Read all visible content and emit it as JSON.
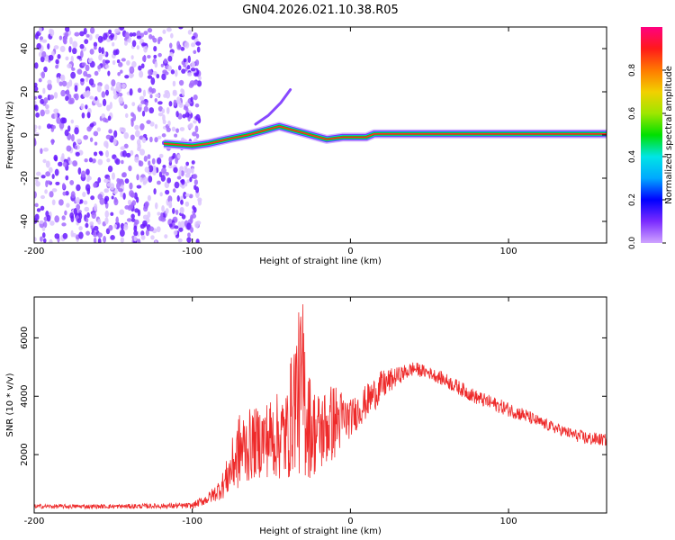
{
  "title": "GN04.2026.021.10.38.R05",
  "chart_data": [
    {
      "type": "heatmap",
      "xlabel": "Height of straight line (km)",
      "ylabel": "Frequency (Hz)",
      "xlim": [
        -200,
        162
      ],
      "ylim": [
        -50,
        50
      ],
      "x_ticks": [
        "-200",
        "-100",
        "0",
        "100"
      ],
      "y_ticks": [
        "40",
        "20",
        "0",
        "-20",
        "-40"
      ],
      "colorbar": {
        "label": "Normalized spectral amplitude",
        "range": [
          0,
          1
        ],
        "ticks": [
          "0.0",
          "0.2",
          "0.4",
          "0.6",
          "0.8"
        ],
        "stops": [
          "#cfa3ff",
          "#7b2bff",
          "#0000ff",
          "#00a8ff",
          "#00e5e5",
          "#00e000",
          "#9ee600",
          "#f2d000",
          "#ff7a00",
          "#ff1a1a",
          "#ff0080"
        ]
      },
      "noise_region_x": [
        -200,
        -95
      ],
      "signal_track": [
        {
          "x": -118,
          "f": -4
        },
        {
          "x": -100,
          "f": -5
        },
        {
          "x": -90,
          "f": -4
        },
        {
          "x": -78,
          "f": -2
        },
        {
          "x": -65,
          "f": 0
        },
        {
          "x": -55,
          "f": 2
        },
        {
          "x": -45,
          "f": 4
        },
        {
          "x": -35,
          "f": 2
        },
        {
          "x": -25,
          "f": 0
        },
        {
          "x": -15,
          "f": -2
        },
        {
          "x": -5,
          "f": -1
        },
        {
          "x": 10,
          "f": -1
        },
        {
          "x": 15,
          "f": 0.5
        },
        {
          "x": 162,
          "f": 0.5
        }
      ],
      "hook": [
        {
          "x": -60,
          "f": 5
        },
        {
          "x": -52,
          "f": 9
        },
        {
          "x": -44,
          "f": 15
        },
        {
          "x": -38,
          "f": 21
        }
      ]
    },
    {
      "type": "line",
      "xlabel": "Height of straight line (km)",
      "ylabel": "SNR (10 * v/v)",
      "xlim": [
        -200,
        162
      ],
      "ylim": [
        0,
        7400
      ],
      "x_ticks": [
        "-200",
        "-100",
        "0",
        "100"
      ],
      "y_ticks": [
        "6000",
        "4000",
        "2000"
      ],
      "y_tick_values": [
        6000,
        4000,
        2000
      ],
      "color": "#ee2a2a",
      "envelope": {
        "x": [
          -200,
          -150,
          -100,
          -90,
          -85,
          -80,
          -70,
          -60,
          -50,
          -40,
          -35,
          -30,
          -25,
          -20,
          -10,
          0,
          10,
          20,
          30,
          40,
          50,
          60,
          70,
          80,
          90,
          100,
          110,
          120,
          130,
          140,
          150,
          162
        ],
        "low": [
          150,
          150,
          150,
          300,
          400,
          500,
          800,
          1200,
          1200,
          1000,
          1500,
          1000,
          1200,
          1300,
          1800,
          2600,
          3200,
          3800,
          4400,
          4700,
          4600,
          4300,
          4000,
          3700,
          3500,
          3300,
          3100,
          2900,
          2700,
          2500,
          2300,
          2300
        ],
        "high": [
          300,
          300,
          350,
          700,
          1000,
          1500,
          3500,
          3600,
          4000,
          4300,
          6500,
          7400,
          4500,
          4200,
          4500,
          3900,
          4400,
          4900,
          5000,
          5200,
          5000,
          4800,
          4500,
          4200,
          4000,
          3800,
          3600,
          3300,
          3100,
          2900,
          2800,
          2700
        ]
      }
    }
  ]
}
